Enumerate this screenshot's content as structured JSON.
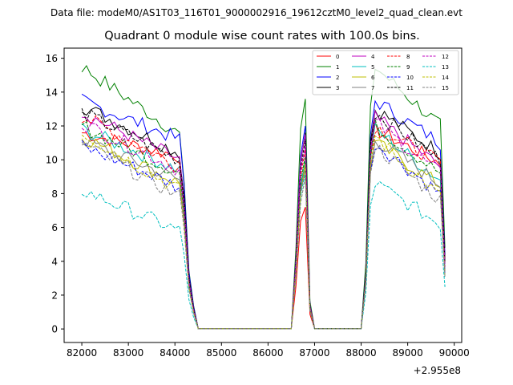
{
  "chart_data": {
    "type": "line",
    "suptitle": "Data file: modeM0/AS1T03_116T01_9000002916_19612cztM0_level2_quad_clean.evt",
    "title": "Quadrant 0 module wise count rates with 100.0s bins.",
    "xlabel": "",
    "ylabel": "",
    "x_offset_label": "+2.955e8",
    "xlim": [
      81620,
      90160
    ],
    "ylim": [
      -0.8,
      16.6
    ],
    "xticks": [
      82000,
      83000,
      84000,
      85000,
      86000,
      87000,
      88000,
      89000,
      90000
    ],
    "xtick_labels": [
      "82000",
      "83000",
      "84000",
      "85000",
      "86000",
      "87000",
      "88000",
      "89000",
      "90000"
    ],
    "yticks": [
      0,
      2,
      4,
      6,
      8,
      10,
      12,
      14,
      16
    ],
    "ytick_labels": [
      "0",
      "2",
      "4",
      "6",
      "8",
      "10",
      "12",
      "14",
      "16"
    ],
    "grid": false,
    "legend_position": "top-right",
    "legend_columns": 4,
    "time_segments": [
      {
        "start": 82000,
        "end": 84600
      },
      {
        "start": 86600,
        "end": 86800
      },
      {
        "start": 88100,
        "end": 89800
      }
    ],
    "series": [
      {
        "name": "0",
        "color": "#ff0000",
        "dash": "solid",
        "levels": [
          11.6,
          10.2,
          7.2,
          10.5,
          11.8,
          9.8
        ]
      },
      {
        "name": "1",
        "color": "#008000",
        "dash": "solid",
        "levels": [
          15.5,
          11.5,
          13.6,
          15.5,
          12.0
        ]
      },
      {
        "name": "2",
        "color": "#0000ff",
        "dash": "solid",
        "levels": [
          13.5,
          11.2,
          12.0,
          13.5,
          11.0
        ]
      },
      {
        "name": "3",
        "color": "#000000",
        "dash": "solid",
        "levels": [
          13.2,
          10.4,
          11.6,
          13.0,
          10.4
        ]
      },
      {
        "name": "4",
        "color": "#bf00bf",
        "dash": "solid",
        "levels": [
          12.8,
          10.0,
          11.5,
          12.5,
          9.6
        ]
      },
      {
        "name": "5",
        "color": "#00bfbf",
        "dash": "solid",
        "levels": [
          11.8,
          9.4,
          10.0,
          11.8,
          8.8
        ]
      },
      {
        "name": "6",
        "color": "#bfbf00",
        "dash": "solid",
        "levels": [
          11.4,
          8.6,
          9.8,
          11.0,
          8.5
        ]
      },
      {
        "name": "7",
        "color": "#808080",
        "dash": "solid",
        "levels": [
          11.2,
          8.8,
          9.4,
          11.2,
          8.6
        ]
      },
      {
        "name": "8",
        "color": "#ff0000",
        "dash": "dashed",
        "levels": [
          12.6,
          9.6,
          10.6,
          12.0,
          9.8
        ]
      },
      {
        "name": "9",
        "color": "#008000",
        "dash": "dashed",
        "levels": [
          12.0,
          9.2,
          10.2,
          12.0,
          9.2
        ]
      },
      {
        "name": "10",
        "color": "#0000ff",
        "dash": "dashed",
        "levels": [
          10.8,
          8.4,
          9.6,
          11.0,
          8.0
        ]
      },
      {
        "name": "11",
        "color": "#000000",
        "dash": "dashed",
        "levels": [
          12.8,
          10.0,
          11.2,
          12.8,
          10.0
        ]
      },
      {
        "name": "12",
        "color": "#bf00bf",
        "dash": "dashed",
        "levels": [
          12.2,
          9.4,
          10.8,
          12.2,
          9.2
        ]
      },
      {
        "name": "13",
        "color": "#00bfbf",
        "dash": "dashed",
        "levels": [
          8.2,
          5.8,
          9.2,
          8.6,
          6.2
        ]
      },
      {
        "name": "14",
        "color": "#bfbf00",
        "dash": "dashed",
        "levels": [
          11.6,
          8.2,
          9.6,
          11.4,
          7.8
        ]
      },
      {
        "name": "15",
        "color": "#808080",
        "dash": "dashed",
        "levels": [
          11.0,
          7.8,
          9.0,
          10.8,
          7.6
        ]
      }
    ]
  }
}
